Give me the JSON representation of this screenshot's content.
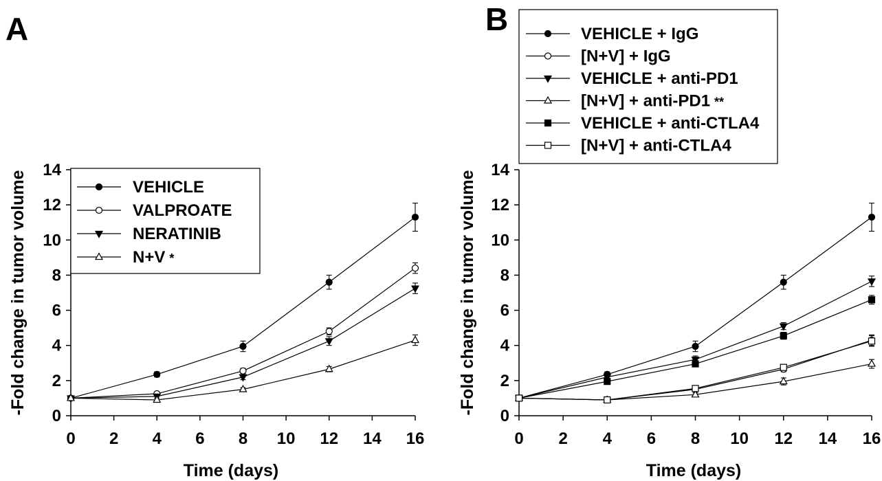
{
  "chart_data": [
    {
      "type": "line",
      "panel_label": "A",
      "xlabel": "Time (days)",
      "ylabel": "-Fold change in tumor volume",
      "xlim": [
        0,
        16
      ],
      "ylim": [
        0,
        14
      ],
      "x_ticks": [
        "0",
        "2",
        "4",
        "6",
        "8",
        "10",
        "12",
        "14",
        "16"
      ],
      "y_ticks": [
        "0",
        "2",
        "4",
        "6",
        "8",
        "10",
        "12",
        "14"
      ],
      "grid": false,
      "legend_position": "top-left",
      "x": [
        0,
        4,
        8,
        12,
        16
      ],
      "series": [
        {
          "name": "VEHICLE",
          "marker": "filled-circle",
          "annotation": "",
          "values": [
            1.0,
            2.35,
            3.95,
            7.6,
            11.3
          ],
          "errors": [
            0.05,
            0.15,
            0.3,
            0.4,
            0.8
          ]
        },
        {
          "name": "VALPROATE",
          "marker": "open-circle",
          "annotation": "",
          "values": [
            1.0,
            1.25,
            2.55,
            4.8,
            8.4
          ],
          "errors": [
            0.05,
            0.1,
            0.15,
            0.2,
            0.3
          ]
        },
        {
          "name": "NERATINIB",
          "marker": "filled-triangle-down",
          "annotation": "",
          "values": [
            1.0,
            1.1,
            2.2,
            4.25,
            7.25
          ],
          "errors": [
            0.05,
            0.1,
            0.15,
            0.25,
            0.3
          ]
        },
        {
          "name": "N+V",
          "marker": "open-triangle-up",
          "annotation": "*",
          "values": [
            1.0,
            0.9,
            1.5,
            2.65,
            4.3
          ],
          "errors": [
            0.05,
            0.05,
            0.1,
            0.15,
            0.3
          ]
        }
      ]
    },
    {
      "type": "line",
      "panel_label": "B",
      "xlabel": "Time (days)",
      "ylabel": "-Fold change in tumor volume",
      "xlim": [
        0,
        16
      ],
      "ylim": [
        0,
        14
      ],
      "x_ticks": [
        "0",
        "2",
        "4",
        "6",
        "8",
        "10",
        "12",
        "14",
        "16"
      ],
      "y_ticks": [
        "0",
        "2",
        "4",
        "6",
        "8",
        "10",
        "12",
        "14"
      ],
      "grid": false,
      "legend_position": "top-left",
      "x": [
        0,
        4,
        8,
        12,
        16
      ],
      "series": [
        {
          "name": "VEHICLE + IgG",
          "marker": "filled-circle",
          "annotation": "",
          "values": [
            1.0,
            2.35,
            3.95,
            7.6,
            11.3
          ],
          "errors": [
            0.05,
            0.15,
            0.3,
            0.4,
            0.8
          ]
        },
        {
          "name": "[N+V] + IgG",
          "marker": "open-circle",
          "annotation": "",
          "values": [
            1.0,
            0.9,
            1.5,
            2.65,
            4.3
          ],
          "errors": [
            0.05,
            0.05,
            0.1,
            0.15,
            0.3
          ]
        },
        {
          "name": "VEHICLE + anti-PD1",
          "marker": "filled-triangle-down",
          "annotation": "",
          "values": [
            1.0,
            2.2,
            3.2,
            5.1,
            7.65
          ],
          "errors": [
            0.05,
            0.1,
            0.2,
            0.2,
            0.3
          ]
        },
        {
          "name": "[N+V] + anti-PD1",
          "marker": "open-triangle-up",
          "annotation": "**",
          "values": [
            1.0,
            0.9,
            1.2,
            1.95,
            2.95
          ],
          "errors": [
            0.05,
            0.05,
            0.1,
            0.2,
            0.25
          ]
        },
        {
          "name": "VEHICLE + anti-CTLA4",
          "marker": "filled-square",
          "annotation": "",
          "values": [
            1.0,
            1.95,
            2.95,
            4.55,
            6.6
          ],
          "errors": [
            0.05,
            0.1,
            0.15,
            0.2,
            0.25
          ]
        },
        {
          "name": "[N+V] + anti-CTLA4",
          "marker": "open-square",
          "annotation": "",
          "values": [
            1.0,
            0.9,
            1.55,
            2.75,
            4.25
          ],
          "errors": [
            0.05,
            0.05,
            0.1,
            0.15,
            0.3
          ]
        }
      ]
    }
  ]
}
